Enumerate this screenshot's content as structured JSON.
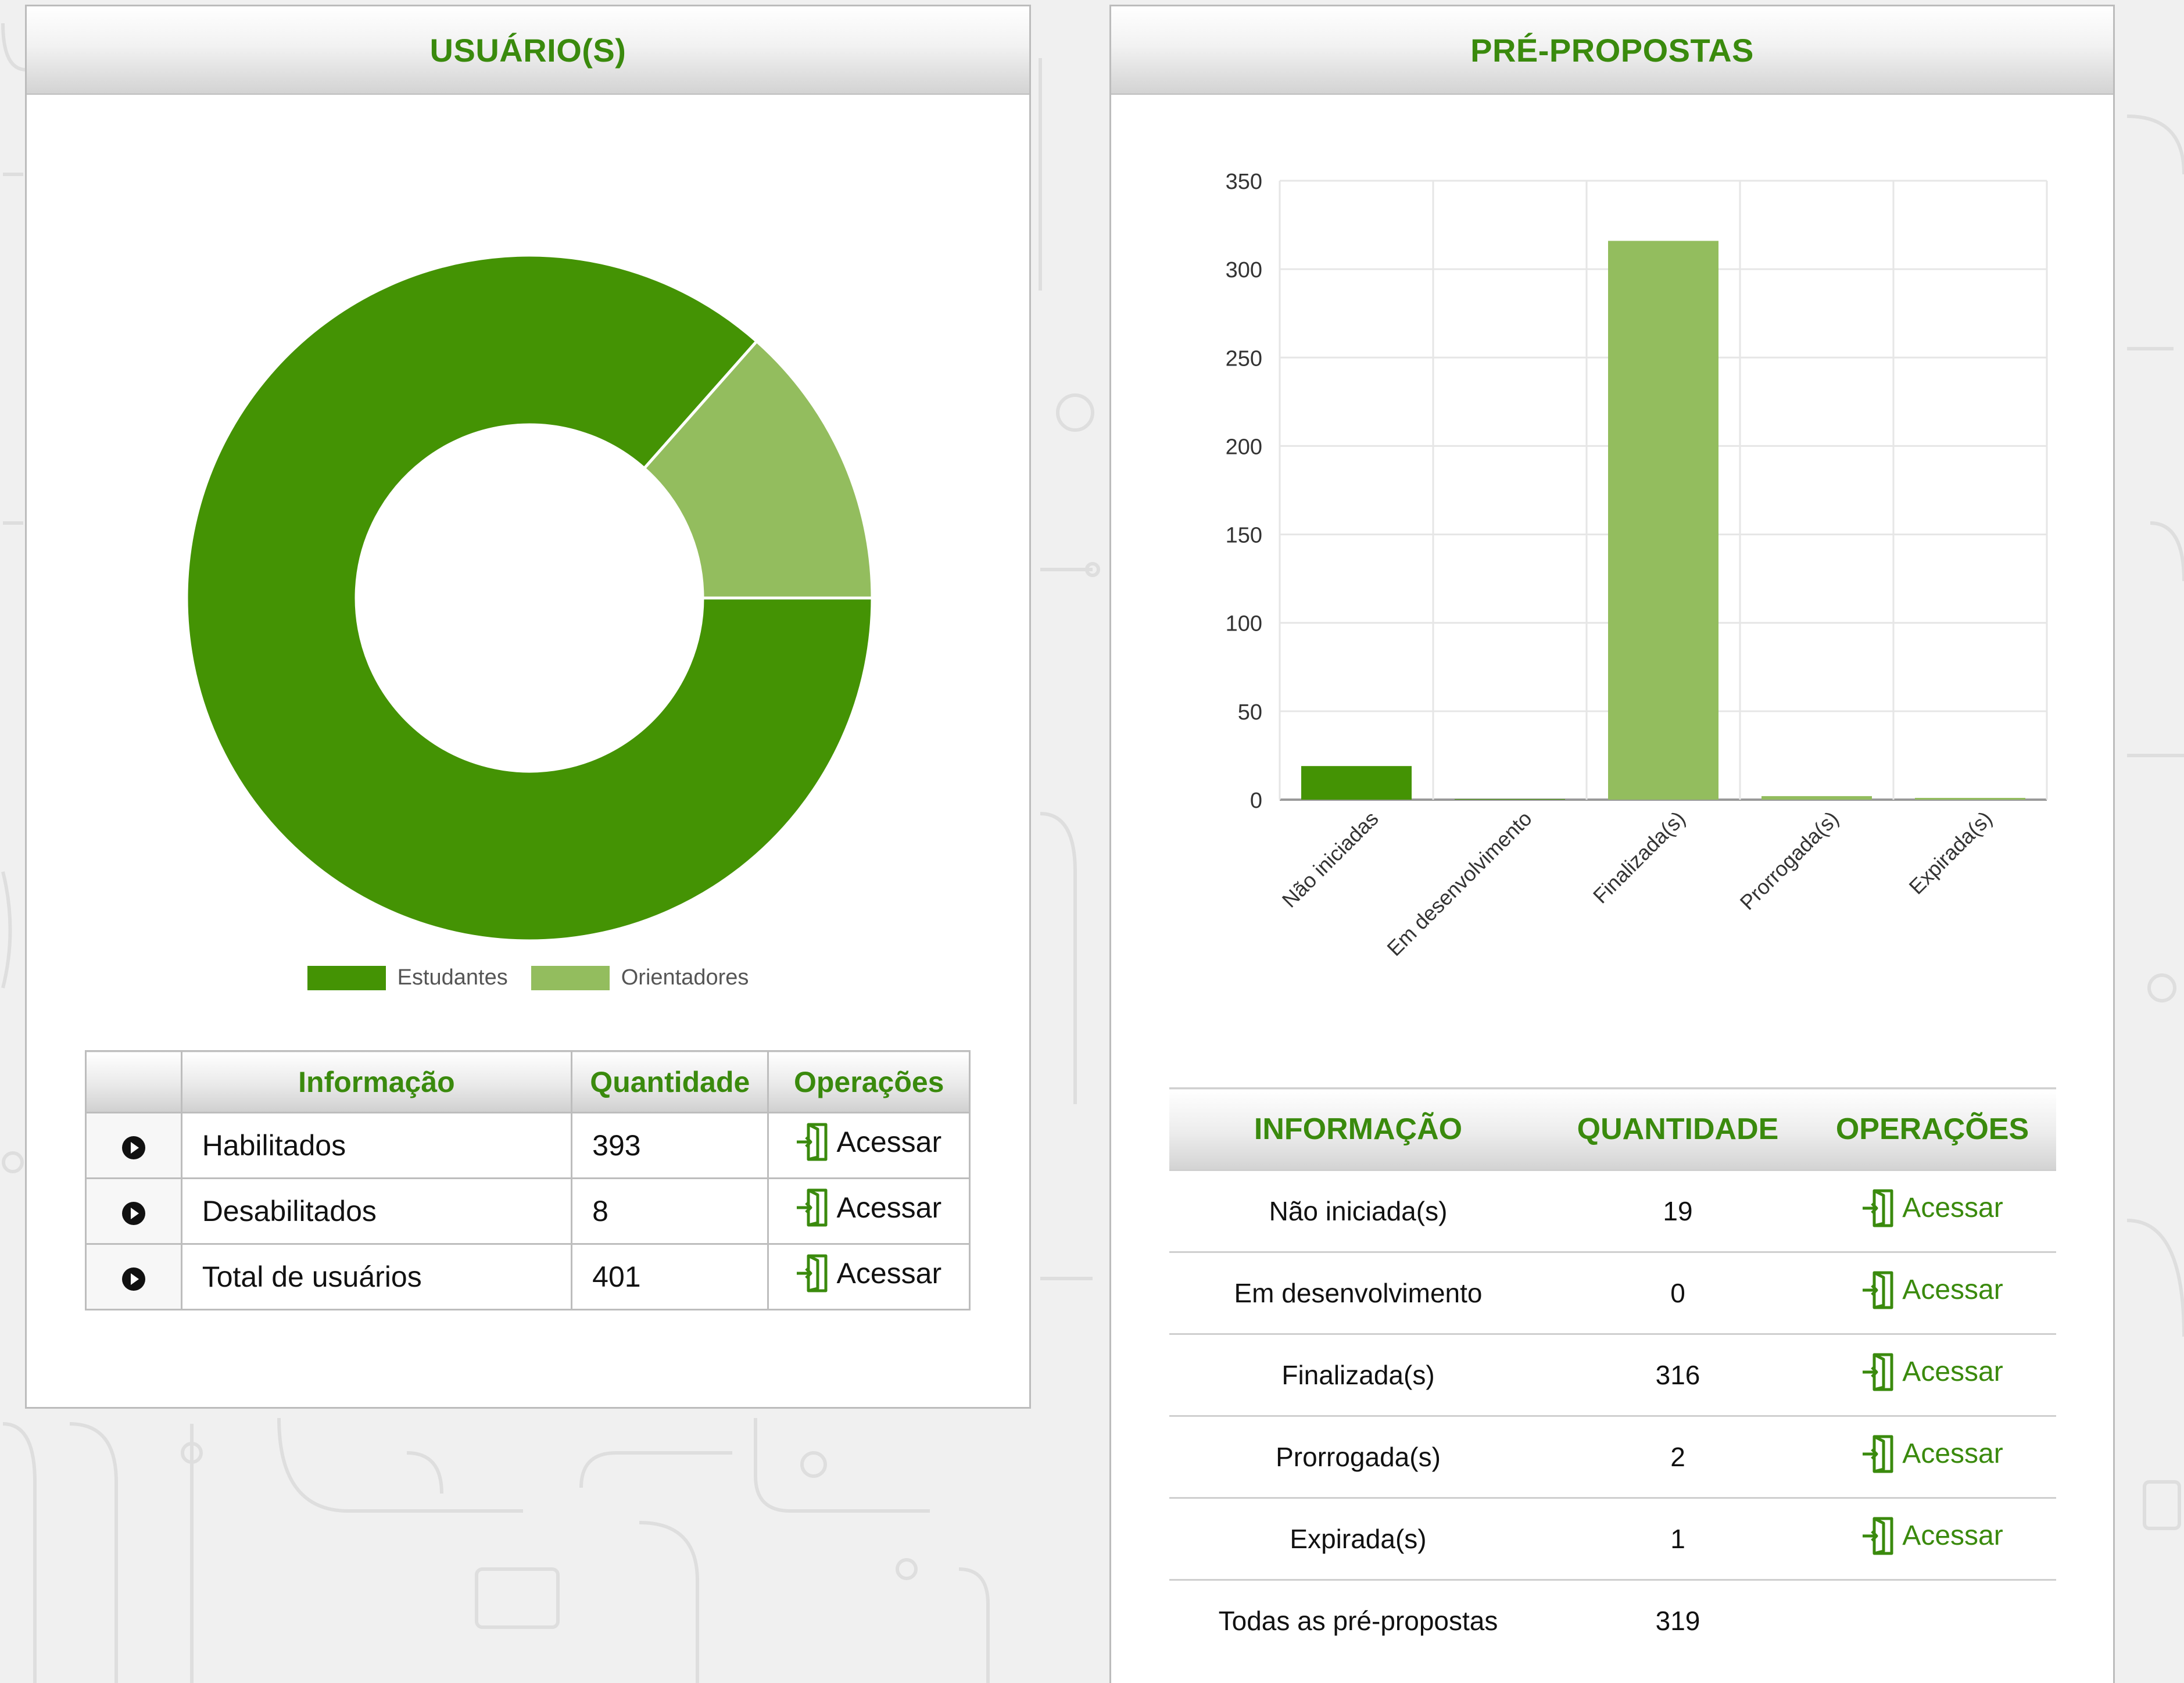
{
  "colors": {
    "primary_green": "#3a8a0d",
    "dark_segment": "#449304",
    "light_segment": "#93bd5e",
    "header_gradient_bottom": "#d3d3d3"
  },
  "left_panel": {
    "title": "USUÁRIO(S)",
    "legend": [
      {
        "label": "Estudantes",
        "color": "#449304"
      },
      {
        "label": "Orientadores",
        "color": "#93bd5e"
      }
    ],
    "table": {
      "headers": [
        "",
        "Informação",
        "Quantidade",
        "Operações"
      ],
      "rows": [
        {
          "info": "Habilitados",
          "qty": "393",
          "op": "Acessar"
        },
        {
          "info": "Desabilitados",
          "qty": "8",
          "op": "Acessar"
        },
        {
          "info": "Total de usuários",
          "qty": "401",
          "op": "Acessar"
        }
      ]
    }
  },
  "right_panel": {
    "title": "PRÉ-PROPOSTAS",
    "table": {
      "headers": [
        "INFORMAÇÃO",
        "QUANTIDADE",
        "OPERAÇÕES"
      ],
      "rows": [
        {
          "info": "Não iniciada(s)",
          "qty": "19",
          "op": "Acessar"
        },
        {
          "info": "Em desenvolvimento",
          "qty": "0",
          "op": "Acessar"
        },
        {
          "info": "Finalizada(s)",
          "qty": "316",
          "op": "Acessar"
        },
        {
          "info": "Prorrogada(s)",
          "qty": "2",
          "op": "Acessar"
        },
        {
          "info": "Expirada(s)",
          "qty": "1",
          "op": "Acessar"
        },
        {
          "info": "Todas as pré-propostas",
          "qty": "319",
          "op": ""
        }
      ]
    }
  },
  "icons": {
    "bullet": "play-circle-icon",
    "operation": "door-enter-icon"
  },
  "chart_data": [
    {
      "type": "pie",
      "variant": "donut",
      "categories": [
        "Estudantes",
        "Orientadores"
      ],
      "values": [
        347,
        54
      ],
      "colors": [
        "#449304",
        "#93bd5e"
      ],
      "legend_position": "bottom"
    },
    {
      "type": "bar",
      "categories": [
        "Não iniciadas",
        "Em desenvolvimento",
        "Finalizada(s)",
        "Prorrogada(s)",
        "Expirada(s)"
      ],
      "values": [
        19,
        0,
        316,
        2,
        1
      ],
      "colors": [
        "#449304",
        "#449304",
        "#93bd5e",
        "#93bd5e",
        "#93bd5e"
      ],
      "ylim": [
        0,
        350
      ],
      "yticks": [
        0,
        50,
        100,
        150,
        200,
        250,
        300,
        350
      ],
      "grid": true,
      "xlabel_rotation": -45
    }
  ]
}
